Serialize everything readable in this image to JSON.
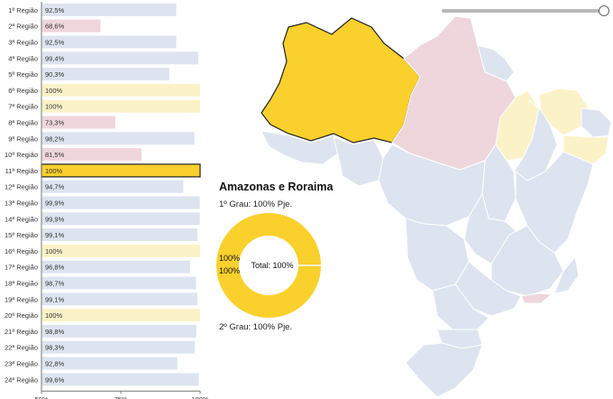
{
  "chart_data": {
    "type": "bar",
    "orientation": "horizontal",
    "categories": [
      "1ª Região",
      "2ª Região",
      "3ª Região",
      "4ª Região",
      "5ª Região",
      "6ª Região",
      "7ª Região",
      "8ª Região",
      "9ª Região",
      "10ª Região",
      "11ª Região",
      "12ª Região",
      "13ª Região",
      "14ª Região",
      "15ª Região",
      "16ª Região",
      "17ª Região",
      "18ª Região",
      "19ª Região",
      "20ª Região",
      "21ª Região",
      "22ª Região",
      "23ª Região",
      "24ª Região"
    ],
    "values": [
      92.5,
      68.6,
      92.5,
      99.4,
      90.3,
      100,
      100,
      73.3,
      98.2,
      81.5,
      100,
      94.7,
      99.9,
      99.9,
      99.1,
      100,
      96.8,
      98.7,
      99.1,
      100,
      98.8,
      98.3,
      92.8,
      99.6
    ],
    "value_labels": [
      "92,5%",
      "68,6%",
      "92,5%",
      "99,4%",
      "90,3%",
      "100%",
      "100%",
      "73,3%",
      "98,2%",
      "81,5%",
      "100%",
      "94,7%",
      "99,9%",
      "99,9%",
      "99,1%",
      "100%",
      "96,8%",
      "98,7%",
      "99,1%",
      "100%",
      "98,8%",
      "98,3%",
      "92,8%",
      "99,6%"
    ],
    "selected_index": 10,
    "xlim": [
      50,
      100
    ],
    "xticks": [
      50,
      75,
      100
    ],
    "xtick_labels": [
      "50%",
      "75%",
      "100%"
    ],
    "colors": {
      "high": "#dde4ef",
      "low": "#eed6dc",
      "full": "#fcf2c8",
      "selected": "#fad02c",
      "selected_border": "#222222",
      "axis": "#777777"
    }
  },
  "slider": {
    "value": 1.0
  },
  "detail": {
    "title": "Amazonas e Roraima",
    "grau1": "1º Grau: 100% Pje.",
    "grau2": "2º Grau: 100% Pje.",
    "donut": {
      "center_label": "Total: 100%",
      "outer_label": "100%",
      "inner_label": "100%",
      "value": 100,
      "color": "#fad02c"
    }
  },
  "map": {
    "colors": {
      "selected": "#fad02c",
      "high": "#dde4ef",
      "low": "#eed6dc",
      "full": "#fcf2c8",
      "border": "#ffffff"
    }
  }
}
